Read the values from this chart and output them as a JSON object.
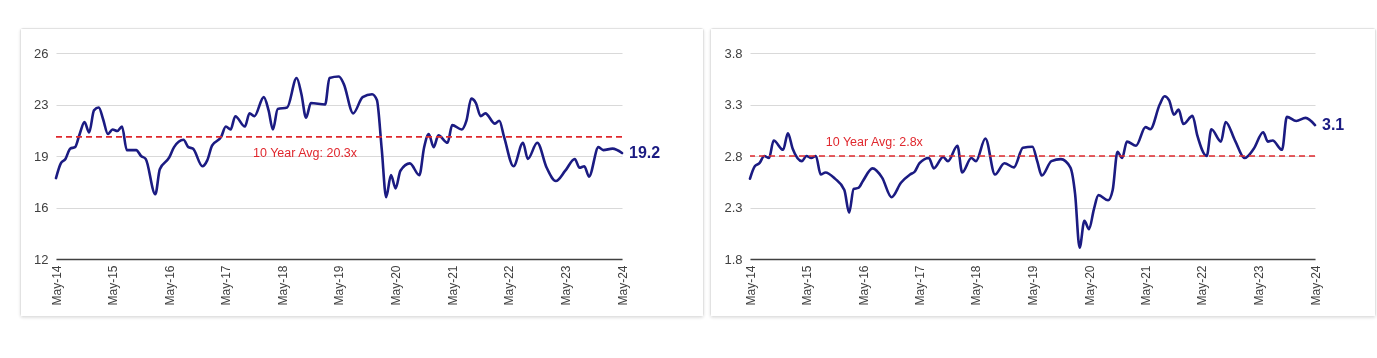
{
  "chart_data": [
    {
      "type": "line",
      "x": [
        "2014-05",
        "2014-06",
        "2014-07",
        "2014-08",
        "2014-09",
        "2014-10",
        "2014-11",
        "2014-12",
        "2015-01",
        "2015-02",
        "2015-03",
        "2015-04",
        "2015-05",
        "2015-06",
        "2015-07",
        "2015-08",
        "2015-10",
        "2015-11",
        "2015-12",
        "2016-02",
        "2016-03",
        "2016-05",
        "2016-06",
        "2016-08",
        "2016-09",
        "2016-10",
        "2016-12",
        "2017-01",
        "2017-02",
        "2017-04",
        "2017-05",
        "2017-06",
        "2017-07",
        "2017-09",
        "2017-10",
        "2017-11",
        "2018-01",
        "2018-02",
        "2018-03",
        "2018-04",
        "2018-06",
        "2018-08",
        "2018-09",
        "2018-10",
        "2018-11",
        "2019-02",
        "2019-03",
        "2019-05",
        "2019-06",
        "2019-08",
        "2019-10",
        "2019-12",
        "2020-01",
        "2020-02",
        "2020-03",
        "2020-04",
        "2020-05",
        "2020-06",
        "2020-08",
        "2020-10",
        "2020-11",
        "2020-12",
        "2021-01",
        "2021-02",
        "2021-04",
        "2021-05",
        "2021-07",
        "2021-08",
        "2021-09",
        "2021-10",
        "2021-11",
        "2021-12",
        "2022-02",
        "2022-03",
        "2022-04",
        "2022-06",
        "2022-08",
        "2022-09",
        "2022-11",
        "2023-01",
        "2023-03",
        "2023-05",
        "2023-07",
        "2023-08",
        "2023-09",
        "2023-10",
        "2023-12",
        "2024-01",
        "2024-03",
        "2024-05"
      ],
      "series": [
        {
          "color": "#1b1b82",
          "values": [
            17.5,
            18.5,
            18.8,
            19.5,
            19.6,
            20.5,
            21.3,
            20.6,
            22.1,
            22.3,
            21.5,
            20.5,
            20.8,
            20.7,
            21.0,
            19.4,
            19.4,
            19.0,
            18.8,
            16.4,
            18.1,
            18.9,
            19.6,
            20.1,
            19.6,
            19.5,
            18.3,
            18.7,
            19.7,
            20.3,
            21.0,
            20.8,
            21.7,
            21.0,
            21.9,
            21.7,
            23.0,
            22.1,
            20.8,
            22.2,
            22.3,
            24.3,
            23.2,
            21.6,
            22.6,
            22.5,
            24.3,
            24.4,
            23.9,
            21.9,
            23.0,
            23.2,
            22.8,
            19.5,
            16.2,
            17.7,
            16.8,
            18.0,
            18.5,
            17.7,
            19.6,
            20.5,
            19.6,
            20.4,
            19.9,
            21.1,
            20.8,
            21.4,
            22.9,
            22.6,
            21.7,
            21.9,
            21.2,
            21.4,
            20.3,
            18.3,
            19.9,
            18.8,
            19.9,
            18.2,
            17.3,
            18.0,
            18.8,
            18.2,
            18.3,
            17.6,
            19.6,
            19.4,
            19.5,
            19.2
          ],
          "value_labels": [
            null,
            null,
            null,
            null,
            null,
            null,
            null,
            null,
            null,
            null,
            null,
            null,
            null,
            null,
            null,
            null,
            null,
            null,
            null,
            null,
            null,
            null,
            null,
            null,
            null,
            null,
            null,
            null,
            null,
            null,
            null,
            null,
            null,
            null,
            null,
            null,
            null,
            null,
            null,
            null,
            null,
            null,
            null,
            null,
            null,
            null,
            null,
            null,
            null,
            null,
            null,
            null,
            null,
            null,
            null,
            null,
            null,
            null,
            null,
            null,
            null,
            null,
            null,
            null,
            null,
            null,
            null,
            null,
            null,
            null,
            null,
            null,
            null,
            null,
            null,
            null,
            null,
            null,
            null,
            null,
            null,
            null,
            null,
            null,
            null,
            null,
            null,
            null,
            null,
            "19.2"
          ]
        }
      ],
      "xlim": [
        "2014-05",
        "2024-05"
      ],
      "xticks": [
        {
          "value": "2014-05",
          "label": "May-14"
        },
        {
          "value": "2015-05",
          "label": "May-15"
        },
        {
          "value": "2016-05",
          "label": "May-16"
        },
        {
          "value": "2017-05",
          "label": "May-17"
        },
        {
          "value": "2018-05",
          "label": "May-18"
        },
        {
          "value": "2019-05",
          "label": "May-19"
        },
        {
          "value": "2020-05",
          "label": "May-20"
        },
        {
          "value": "2021-05",
          "label": "May-21"
        },
        {
          "value": "2022-05",
          "label": "May-22"
        },
        {
          "value": "2023-05",
          "label": "May-23"
        },
        {
          "value": "2024-05",
          "label": "May-24"
        }
      ],
      "ylim": [
        12,
        26
      ],
      "yticks": [
        12,
        {
          "value": 15.5,
          "label": "16"
        },
        19,
        {
          "value": 22.5,
          "label": "23"
        },
        26
      ],
      "grid": "y",
      "line_style": "solid",
      "ref_lines": [
        {
          "axis": "y",
          "value": 20.3,
          "label": "10 Year Avg: 20.3x",
          "color": "#e0282e",
          "line_style": "dashed"
        }
      ]
    },
    {
      "type": "line",
      "x": [
        "2014-05",
        "2014-06",
        "2014-07",
        "2014-08",
        "2014-09",
        "2014-10",
        "2014-12",
        "2015-01",
        "2015-02",
        "2015-04",
        "2015-05",
        "2015-06",
        "2015-07",
        "2015-08",
        "2015-09",
        "2015-11",
        "2016-01",
        "2016-02",
        "2016-03",
        "2016-04",
        "2016-05",
        "2016-07",
        "2016-09",
        "2016-11",
        "2017-01",
        "2017-03",
        "2017-04",
        "2017-05",
        "2017-07",
        "2017-08",
        "2017-10",
        "2017-11",
        "2018-01",
        "2018-02",
        "2018-04",
        "2018-05",
        "2018-07",
        "2018-09",
        "2018-11",
        "2019-01",
        "2019-03",
        "2019-05",
        "2019-06",
        "2019-07",
        "2019-09",
        "2019-11",
        "2020-01",
        "2020-02",
        "2020-03",
        "2020-04",
        "2020-05",
        "2020-06",
        "2020-07",
        "2020-09",
        "2020-10",
        "2020-11",
        "2020-12",
        "2021-01",
        "2021-03",
        "2021-05",
        "2021-06",
        "2021-08",
        "2021-09",
        "2021-10",
        "2021-11",
        "2021-12",
        "2022-01",
        "2022-03",
        "2022-04",
        "2022-06",
        "2022-07",
        "2022-09",
        "2022-10",
        "2022-12",
        "2023-02",
        "2023-04",
        "2023-06",
        "2023-07",
        "2023-08",
        "2023-10",
        "2023-11",
        "2024-01",
        "2024-03",
        "2024-05"
      ],
      "series": [
        {
          "color": "#1b1b82",
          "values": [
            2.58,
            2.7,
            2.73,
            2.8,
            2.78,
            2.95,
            2.86,
            3.02,
            2.87,
            2.75,
            2.8,
            2.78,
            2.8,
            2.62,
            2.64,
            2.58,
            2.47,
            2.25,
            2.48,
            2.49,
            2.56,
            2.68,
            2.59,
            2.4,
            2.54,
            2.62,
            2.65,
            2.73,
            2.78,
            2.68,
            2.79,
            2.75,
            2.9,
            2.64,
            2.78,
            2.75,
            2.97,
            2.62,
            2.73,
            2.69,
            2.88,
            2.89,
            2.75,
            2.61,
            2.75,
            2.77,
            2.69,
            2.43,
            1.91,
            2.17,
            2.09,
            2.28,
            2.42,
            2.37,
            2.47,
            2.84,
            2.78,
            2.94,
            2.9,
            3.08,
            3.06,
            3.3,
            3.38,
            3.34,
            3.2,
            3.25,
            3.11,
            3.19,
            3.0,
            2.8,
            3.06,
            2.94,
            3.13,
            2.95,
            2.78,
            2.87,
            3.03,
            2.94,
            2.95,
            2.86,
            3.18,
            3.14,
            3.17,
            3.1
          ],
          "value_labels": [
            null,
            null,
            null,
            null,
            null,
            null,
            null,
            null,
            null,
            null,
            null,
            null,
            null,
            null,
            null,
            null,
            null,
            null,
            null,
            null,
            null,
            null,
            null,
            null,
            null,
            null,
            null,
            null,
            null,
            null,
            null,
            null,
            null,
            null,
            null,
            null,
            null,
            null,
            null,
            null,
            null,
            null,
            null,
            null,
            null,
            null,
            null,
            null,
            null,
            null,
            null,
            null,
            null,
            null,
            null,
            null,
            null,
            null,
            null,
            null,
            null,
            null,
            null,
            null,
            null,
            null,
            null,
            null,
            null,
            null,
            null,
            null,
            null,
            null,
            null,
            null,
            null,
            null,
            null,
            null,
            null,
            null,
            null,
            "3.1"
          ]
        }
      ],
      "xlim": [
        "2014-05",
        "2024-05"
      ],
      "xticks": [
        {
          "value": "2014-05",
          "label": "May-14"
        },
        {
          "value": "2015-05",
          "label": "May-15"
        },
        {
          "value": "2016-05",
          "label": "May-16"
        },
        {
          "value": "2017-05",
          "label": "May-17"
        },
        {
          "value": "2018-05",
          "label": "May-18"
        },
        {
          "value": "2019-05",
          "label": "May-19"
        },
        {
          "value": "2020-05",
          "label": "May-20"
        },
        {
          "value": "2021-05",
          "label": "May-21"
        },
        {
          "value": "2022-05",
          "label": "May-22"
        },
        {
          "value": "2023-05",
          "label": "May-23"
        },
        {
          "value": "2024-05",
          "label": "May-24"
        }
      ],
      "ylim": [
        1.8,
        3.8
      ],
      "yticks": [
        1.8,
        2.3,
        2.8,
        3.3,
        3.8
      ],
      "grid": "y",
      "line_style": "solid",
      "ref_lines": [
        {
          "axis": "y",
          "value": 2.8,
          "label": "10 Year Avg: 2.8x",
          "color": "#e0282e",
          "line_style": "dashed"
        }
      ]
    }
  ]
}
